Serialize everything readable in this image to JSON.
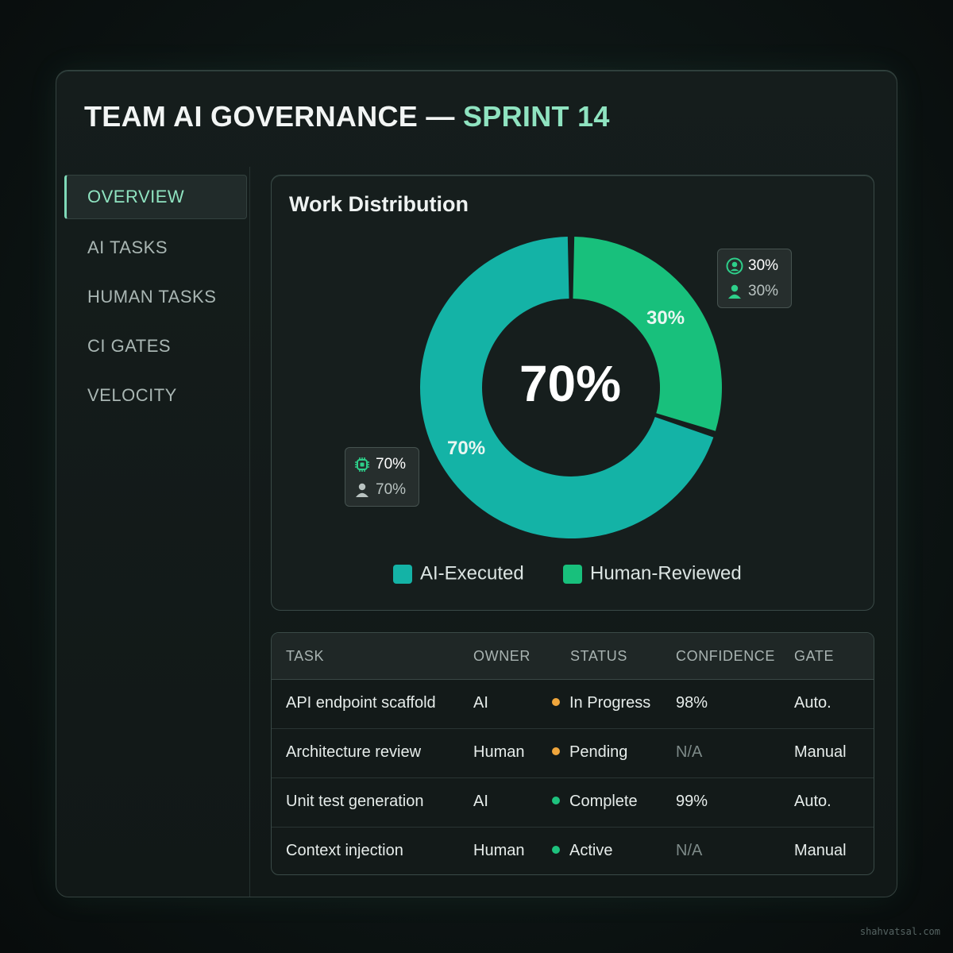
{
  "header": {
    "title_main": "TEAM AI GOVERNANCE",
    "title_sep": " — ",
    "title_accent": "SPRINT 14"
  },
  "sidebar": {
    "items": [
      {
        "label": "OVERVIEW",
        "active": true
      },
      {
        "label": "AI TASKS",
        "active": false
      },
      {
        "label": "HUMAN TASKS",
        "active": false
      },
      {
        "label": "CI GATES",
        "active": false
      },
      {
        "label": "VELOCITY",
        "active": false
      }
    ]
  },
  "distribution": {
    "title": "Work Distribution",
    "center_label": "70%",
    "segment_labels": {
      "ai": "70%",
      "human": "30%"
    },
    "tooltip_human": {
      "row1": "30%",
      "row2": "30%"
    },
    "tooltip_ai": {
      "row1": "70%",
      "row2": "70%"
    },
    "legend": [
      {
        "label": "AI-Executed",
        "color": "#14b3a6"
      },
      {
        "label": "Human-Reviewed",
        "color": "#18c07c"
      }
    ]
  },
  "chart_data": {
    "type": "pie",
    "categories": [
      "AI-Executed",
      "Human-Reviewed"
    ],
    "values": [
      70,
      30
    ],
    "colors": [
      "#14b3a6",
      "#18c07c"
    ],
    "title": "Work Distribution",
    "legend": "bottom"
  },
  "table": {
    "columns": [
      "TASK",
      "OWNER",
      "STATUS",
      "CONFIDENCE",
      "GATE"
    ],
    "rows": [
      {
        "task": "API endpoint scaffold",
        "owner": "AI",
        "status": "In Progress",
        "status_color": "#f0a63c",
        "confidence": "98%",
        "gate": "Auto."
      },
      {
        "task": "Architecture review",
        "owner": "Human",
        "status": "Pending",
        "status_color": "#f0a63c",
        "confidence": "N/A",
        "gate": "Manual"
      },
      {
        "task": "Unit test generation",
        "owner": "AI",
        "status": "Complete",
        "status_color": "#1ec27e",
        "confidence": "99%",
        "gate": "Auto."
      },
      {
        "task": "Context injection",
        "owner": "Human",
        "status": "Active",
        "status_color": "#1ec27e",
        "confidence": "N/A",
        "gate": "Manual"
      }
    ]
  },
  "watermark": "shahvatsal.com",
  "icons": {
    "human_tooltip_row1": "user-circle-icon",
    "human_tooltip_row2": "user-icon",
    "ai_tooltip_row1": "chip-icon",
    "ai_tooltip_row2": "user-icon"
  }
}
